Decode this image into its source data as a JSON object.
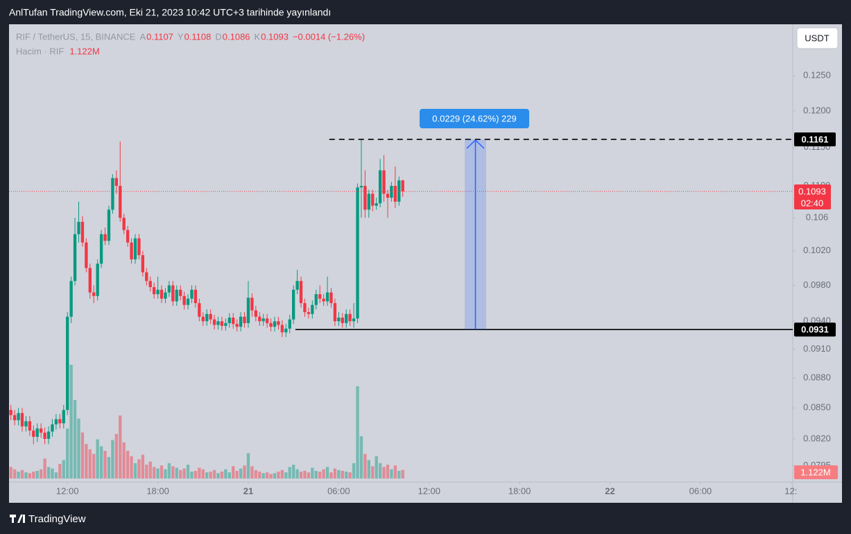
{
  "header": "AnlTufan TradingView.com, Eki 21, 2023 10:42 UTC+3 tarihinde yayınlandı",
  "footer": "TradingView",
  "chart_data": {
    "type": "candlestick",
    "symbol": "RIF / TetherUS, 15, BINANCE",
    "ohlc_legend": [
      {
        "label": "A",
        "value": 0.1107
      },
      {
        "label": "Y",
        "value": 0.1108
      },
      {
        "label": "D",
        "value": 0.1086
      },
      {
        "label": "K",
        "value": 0.1093
      }
    ],
    "change": "−0.0014 (−1.26%)",
    "volume_legend": "Hacim · RIF",
    "volume_last_label": "1.122M",
    "currency": "USDT",
    "up_color": "#089981",
    "down_color": "#f23645",
    "log_scale": true,
    "grid": false,
    "xlim": [
      -0.5,
      207.5
    ],
    "xticks": [
      {
        "value": 15,
        "label": "12:00"
      },
      {
        "value": 39,
        "label": "18:00"
      },
      {
        "value": 63,
        "label": "21"
      },
      {
        "value": 87,
        "label": "06:00"
      },
      {
        "value": 111,
        "label": "12:00"
      },
      {
        "value": 135,
        "label": "18:00"
      },
      {
        "value": 159,
        "label": "22"
      },
      {
        "value": 183,
        "label": "06:00"
      },
      {
        "value": 207,
        "label": "12:"
      }
    ],
    "ylim": [
      0.078,
      0.1327
    ],
    "yticks": [
      {
        "value": 0.125,
        "label": "0.1250"
      },
      {
        "value": 0.12,
        "label": "0.1200"
      },
      {
        "value": 0.115,
        "label": "0.1150"
      },
      {
        "value": 0.11,
        "label": "0.1100"
      },
      0.106,
      {
        "value": 0.102,
        "label": "0.1020"
      },
      {
        "value": 0.098,
        "label": "0.0980"
      },
      {
        "value": 0.094,
        "label": "0.0940"
      },
      {
        "value": 0.091,
        "label": "0.0910"
      },
      {
        "value": 0.088,
        "label": "0.0880"
      },
      {
        "value": 0.085,
        "label": "0.0850"
      },
      {
        "value": 0.082,
        "label": "0.0820"
      },
      0.0795
    ],
    "open": [
      0.0848,
      0.0843,
      0.0838,
      0.0845,
      0.0832,
      0.0837,
      0.0828,
      0.0822,
      0.083,
      0.0826,
      0.082,
      0.0827,
      0.0834,
      0.0839,
      0.0835,
      0.0848,
      0.0945,
      0.0985,
      0.104,
      0.1055,
      0.103,
      0.1,
      0.0972,
      0.0968,
      0.1005,
      0.104,
      0.1032,
      0.107,
      0.111,
      0.11,
      0.106,
      0.1045,
      0.103,
      0.101,
      0.1035,
      0.1015,
      0.0995,
      0.0985,
      0.0978,
      0.097,
      0.0975,
      0.0965,
      0.0972,
      0.098,
      0.0962,
      0.0975,
      0.0968,
      0.0958,
      0.0965,
      0.0975,
      0.096,
      0.0945,
      0.094,
      0.0948,
      0.0942,
      0.0936,
      0.094,
      0.0935,
      0.0938,
      0.0944,
      0.0937,
      0.0934,
      0.0945,
      0.0938,
      0.0966,
      0.0952,
      0.0945,
      0.094,
      0.0943,
      0.0938,
      0.0934,
      0.094,
      0.0936,
      0.0928,
      0.0932,
      0.0942,
      0.0975,
      0.0985,
      0.096,
      0.095,
      0.0948,
      0.0958,
      0.097,
      0.0965,
      0.0962,
      0.0972,
      0.096,
      0.094,
      0.0944,
      0.0938,
      0.0948,
      0.094,
      0.0943,
      0.1098,
      0.11,
      0.107,
      0.109,
      0.1075,
      0.1078,
      0.112,
      0.109,
      0.1085,
      0.11,
      0.108,
      0.1107
    ],
    "high": [
      0.0853,
      0.0848,
      0.085,
      0.085,
      0.0842,
      0.0842,
      0.0833,
      0.0835,
      0.0835,
      0.0831,
      0.0832,
      0.0839,
      0.0844,
      0.0844,
      0.0853,
      0.095,
      0.099,
      0.106,
      0.108,
      0.1062,
      0.1035,
      0.1005,
      0.098,
      0.101,
      0.1045,
      0.1048,
      0.1075,
      0.1115,
      0.112,
      0.1158,
      0.1065,
      0.105,
      0.1035,
      0.104,
      0.104,
      0.102,
      0.1,
      0.099,
      0.0983,
      0.099,
      0.098,
      0.0977,
      0.0985,
      0.0985,
      0.098,
      0.098,
      0.0973,
      0.097,
      0.098,
      0.098,
      0.0965,
      0.095,
      0.0953,
      0.0953,
      0.0947,
      0.0945,
      0.0945,
      0.0943,
      0.0949,
      0.0949,
      0.0942,
      0.095,
      0.095,
      0.0985,
      0.0971,
      0.0957,
      0.095,
      0.0948,
      0.0948,
      0.0943,
      0.0945,
      0.0945,
      0.0941,
      0.0937,
      0.0947,
      0.098,
      0.0998,
      0.099,
      0.0965,
      0.0955,
      0.0963,
      0.0975,
      0.098,
      0.097,
      0.099,
      0.0977,
      0.0965,
      0.095,
      0.0949,
      0.0953,
      0.0953,
      0.096,
      0.1103,
      0.1161,
      0.112,
      0.1095,
      0.1095,
      0.1085,
      0.1135,
      0.114,
      0.1095,
      0.1105,
      0.1125,
      0.1112,
      0.1108
    ],
    "low": [
      0.0838,
      0.0833,
      0.0833,
      0.0827,
      0.0827,
      0.0823,
      0.0815,
      0.0817,
      0.0821,
      0.0815,
      0.0815,
      0.0822,
      0.0829,
      0.083,
      0.083,
      0.0843,
      0.0938,
      0.098,
      0.103,
      0.1025,
      0.0995,
      0.0965,
      0.096,
      0.0963,
      0.1,
      0.1027,
      0.1027,
      0.1065,
      0.109,
      0.1055,
      0.104,
      0.1025,
      0.1005,
      0.1005,
      0.101,
      0.099,
      0.098,
      0.0973,
      0.0965,
      0.0965,
      0.096,
      0.096,
      0.0967,
      0.0957,
      0.0957,
      0.0963,
      0.0953,
      0.0953,
      0.096,
      0.0955,
      0.094,
      0.0935,
      0.0935,
      0.0937,
      0.0931,
      0.0931,
      0.093,
      0.093,
      0.0933,
      0.0932,
      0.0929,
      0.0929,
      0.0933,
      0.0933,
      0.0945,
      0.094,
      0.0935,
      0.0935,
      0.0933,
      0.0929,
      0.0929,
      0.0931,
      0.0923,
      0.0923,
      0.0927,
      0.0937,
      0.097,
      0.0955,
      0.0945,
      0.0943,
      0.0943,
      0.0953,
      0.096,
      0.0957,
      0.0957,
      0.0955,
      0.0935,
      0.0935,
      0.0933,
      0.0933,
      0.0935,
      0.0933,
      0.0938,
      0.106,
      0.106,
      0.106,
      0.1068,
      0.107,
      0.1073,
      0.108,
      0.106,
      0.108,
      0.1072,
      0.1075,
      0.1086
    ],
    "close": [
      0.0843,
      0.0838,
      0.0845,
      0.0832,
      0.0837,
      0.0828,
      0.0822,
      0.083,
      0.0826,
      0.082,
      0.0827,
      0.0834,
      0.0839,
      0.0835,
      0.0848,
      0.0945,
      0.0985,
      0.104,
      0.1055,
      0.103,
      0.1,
      0.0972,
      0.0968,
      0.1005,
      0.104,
      0.1032,
      0.107,
      0.111,
      0.11,
      0.106,
      0.1045,
      0.103,
      0.101,
      0.1035,
      0.1015,
      0.0995,
      0.0985,
      0.0978,
      0.097,
      0.0975,
      0.0965,
      0.0972,
      0.098,
      0.0962,
      0.0975,
      0.0968,
      0.0958,
      0.0965,
      0.0975,
      0.096,
      0.0945,
      0.094,
      0.0948,
      0.0942,
      0.0936,
      0.094,
      0.0935,
      0.0938,
      0.0944,
      0.0937,
      0.0934,
      0.0945,
      0.0938,
      0.0966,
      0.0952,
      0.0945,
      0.094,
      0.0943,
      0.0938,
      0.0934,
      0.094,
      0.0936,
      0.0928,
      0.0932,
      0.0942,
      0.0975,
      0.0985,
      0.096,
      0.095,
      0.0948,
      0.0958,
      0.097,
      0.0965,
      0.0962,
      0.0972,
      0.096,
      0.094,
      0.0944,
      0.0938,
      0.0948,
      0.094,
      0.0943,
      0.1098,
      0.11,
      0.107,
      0.109,
      0.1075,
      0.1078,
      0.112,
      0.109,
      0.1085,
      0.11,
      0.108,
      0.1107,
      0.1093
    ],
    "volume": [
      1.5,
      1.2,
      0.9,
      1.1,
      0.8,
      0.7,
      0.9,
      1.0,
      1.2,
      2.6,
      1.5,
      1.3,
      0.8,
      1.9,
      2.4,
      6.5,
      14.8,
      10.2,
      7.8,
      6.0,
      4.5,
      3.8,
      3.2,
      5.1,
      4.2,
      3.6,
      2.8,
      5.0,
      5.8,
      8.2,
      4.7,
      3.6,
      2.9,
      2.0,
      2.5,
      3.1,
      1.8,
      2.2,
      1.5,
      1.3,
      1.7,
      1.2,
      2.0,
      1.6,
      1.4,
      1.1,
      1.3,
      1.8,
      0.9,
      1.0,
      1.4,
      1.2,
      0.8,
      0.9,
      1.1,
      0.7,
      0.9,
      1.2,
      0.8,
      1.6,
      1.0,
      1.3,
      1.7,
      3.3,
      1.6,
      1.1,
      0.9,
      0.7,
      0.8,
      0.6,
      0.7,
      0.9,
      1.1,
      0.8,
      1.5,
      1.8,
      1.2,
      0.9,
      1.0,
      0.8,
      1.4,
      1.0,
      0.9,
      1.2,
      1.5,
      0.8,
      1.3,
      1.1,
      1.0,
      0.9,
      0.8,
      2.0,
      12.0,
      5.5,
      3.2,
      2.4,
      1.6,
      2.9,
      2.0,
      1.5,
      1.8,
      1.2,
      1.7,
      1.0,
      1.122
    ],
    "levels": [
      {
        "value": 0.1161,
        "style": "dashed"
      },
      {
        "value": 0.0931,
        "style": "solid"
      }
    ],
    "last_price": 0.1093,
    "countdown": "02:40",
    "measure_label": "0.0229 (24.62%) 229"
  }
}
